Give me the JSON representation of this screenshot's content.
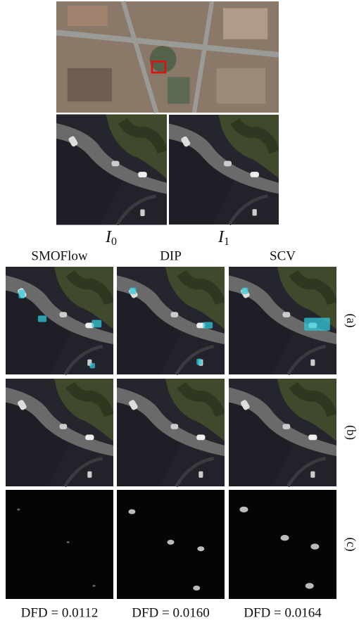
{
  "inputs": [
    {
      "symbol": "I",
      "subscript": "0"
    },
    {
      "symbol": "I",
      "subscript": "1"
    }
  ],
  "columns": [
    "SMOFlow",
    "DIP",
    "SCV"
  ],
  "rows": [
    "(a)",
    "(b)",
    "(c)"
  ],
  "metrics": [
    "DFD = 0.0112",
    "DFD = 0.0160",
    "DFD = 0.0164"
  ]
}
